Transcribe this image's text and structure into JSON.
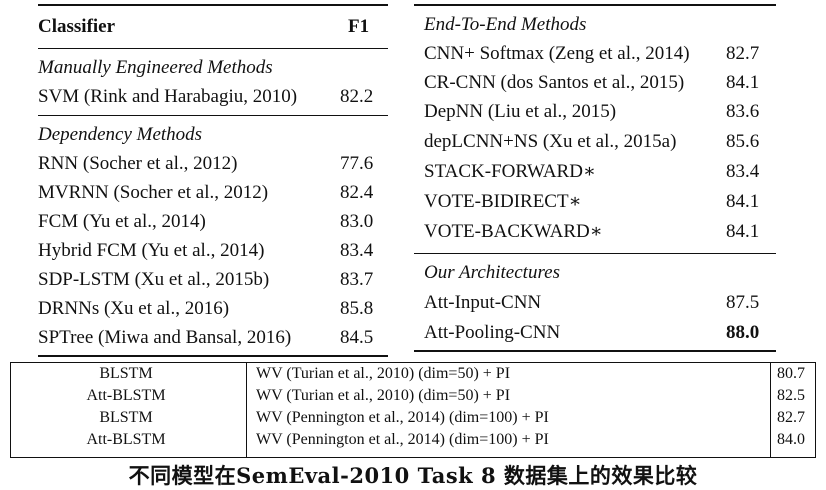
{
  "left_table": {
    "header": {
      "classifier": "Classifier",
      "metric": "F1"
    },
    "sections": [
      {
        "title": "Manually Engineered Methods",
        "rows": [
          {
            "name": "SVM (Rink and Harabagiu, 2010)",
            "score": "82.2"
          }
        ]
      },
      {
        "title": "Dependency Methods",
        "rows": [
          {
            "name": "RNN (Socher et al., 2012)",
            "score": "77.6"
          },
          {
            "name": "MVRNN (Socher et al., 2012)",
            "score": "82.4"
          },
          {
            "name": "FCM (Yu et al., 2014)",
            "score": "83.0"
          },
          {
            "name": "Hybrid FCM (Yu et al., 2014)",
            "score": "83.4"
          },
          {
            "name": "SDP-LSTM (Xu et al., 2015b)",
            "score": "83.7"
          },
          {
            "name": "DRNNs (Xu et al., 2016)",
            "score": "85.8"
          },
          {
            "name": "SPTree (Miwa and Bansal, 2016)",
            "score": "84.5"
          }
        ]
      }
    ]
  },
  "right_table": {
    "sections": [
      {
        "title": "End-To-End Methods",
        "rows": [
          {
            "name": "CNN+ Softmax (Zeng et al., 2014)",
            "score": "82.7"
          },
          {
            "name": "CR-CNN (dos Santos et al., 2015)",
            "score": "84.1"
          },
          {
            "name": "DepNN (Liu et al., 2015)",
            "score": "83.6"
          },
          {
            "name": "depLCNN+NS (Xu et al., 2015a)",
            "score": "85.6"
          },
          {
            "name": "STACK-FORWARD∗",
            "score": "83.4"
          },
          {
            "name": "VOTE-BIDIRECT∗",
            "score": "84.1"
          },
          {
            "name": "VOTE-BACKWARD∗",
            "score": "84.1"
          }
        ]
      },
      {
        "title": "Our Architectures",
        "rows": [
          {
            "name": "Att-Input-CNN",
            "score": "87.5"
          },
          {
            "name": "Att-Pooling-CNN",
            "score": "88.0",
            "bold": true
          }
        ]
      }
    ]
  },
  "bottom_table": {
    "rows": [
      {
        "model": "BLSTM",
        "features": "WV (Turian et al., 2010) (dim=50) + PI",
        "score": "80.7"
      },
      {
        "model": "Att-BLSTM",
        "features": "WV (Turian et al., 2010) (dim=50) + PI",
        "score": "82.5"
      },
      {
        "model": "BLSTM",
        "features": "WV (Pennington et al., 2014) (dim=100) + PI",
        "score": "82.7"
      },
      {
        "model": "Att-BLSTM",
        "features": "WV (Pennington et al., 2014) (dim=100) + PI",
        "score": "84.0"
      }
    ]
  },
  "caption": "不同模型在SemEval-2010 Task 8 数据集上的效果比较"
}
